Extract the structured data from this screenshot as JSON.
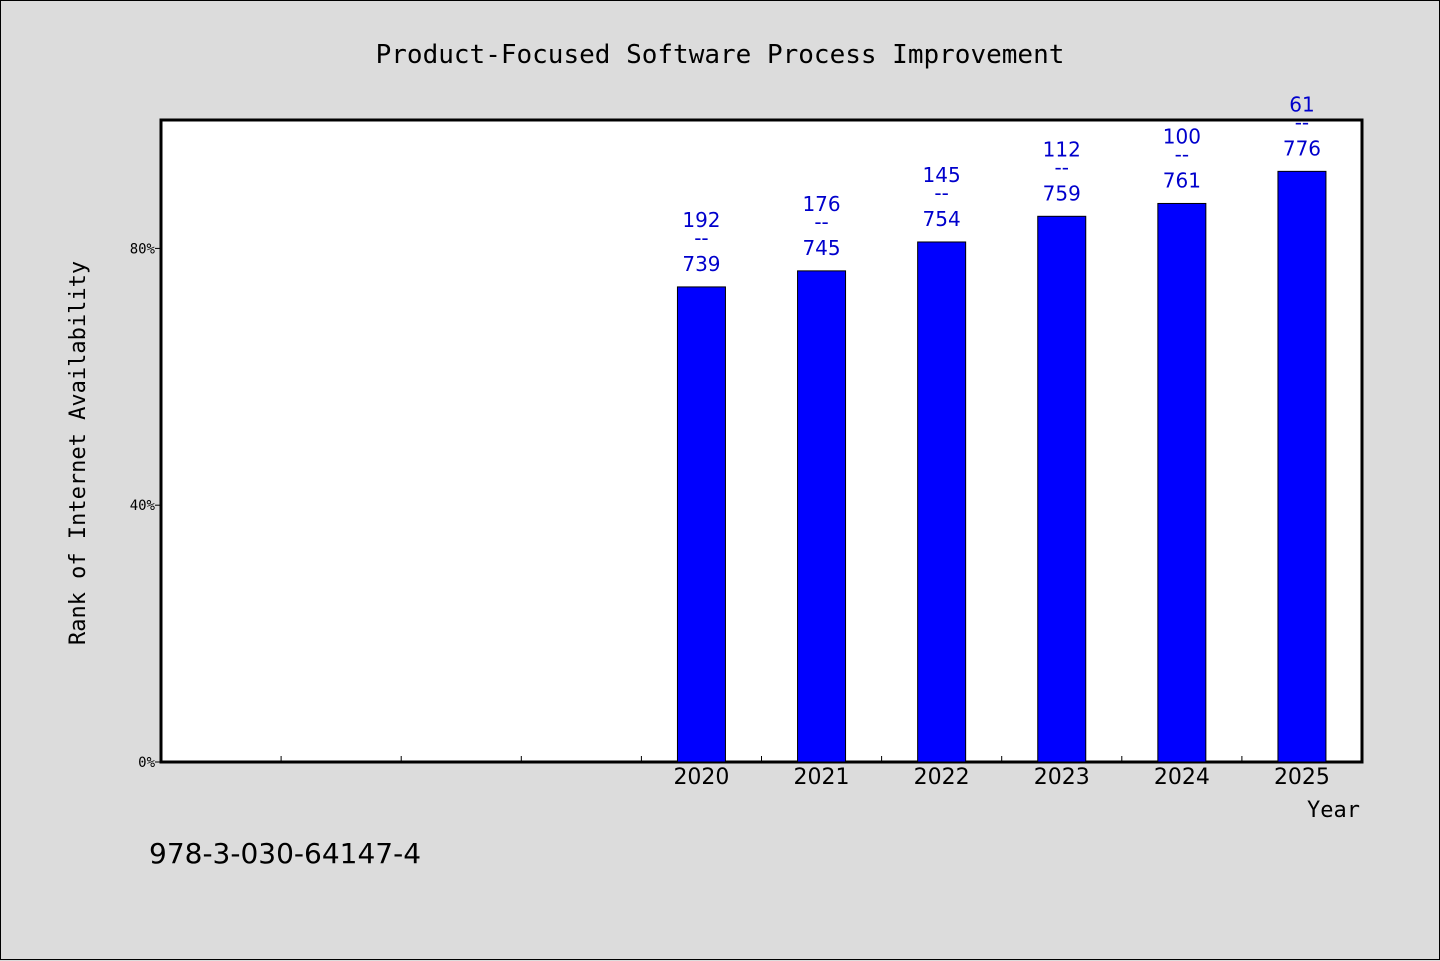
{
  "chart_data": {
    "type": "bar",
    "title": "Product-Focused Software Process Improvement",
    "xlabel": "Year",
    "ylabel": "Rank of Internet Availability",
    "categories": [
      "",
      "",
      "",
      "",
      "2020",
      "2021",
      "2022",
      "2023",
      "2024",
      "2025"
    ],
    "values": [
      null,
      null,
      null,
      null,
      74,
      76.5,
      81,
      85,
      87,
      92
    ],
    "bar_labels": [
      null,
      null,
      null,
      null,
      {
        "top": "192",
        "sep": "--",
        "bottom": "739"
      },
      {
        "top": "176",
        "sep": "--",
        "bottom": "745"
      },
      {
        "top": "145",
        "sep": "--",
        "bottom": "754"
      },
      {
        "top": "112",
        "sep": "--",
        "bottom": "759"
      },
      {
        "top": "100",
        "sep": "--",
        "bottom": "761"
      },
      {
        "top": "61",
        "sep": "--",
        "bottom": "776"
      }
    ],
    "ylim": [
      0,
      100
    ],
    "yticks": [
      {
        "value": 0,
        "label": "0%"
      },
      {
        "value": 40,
        "label": "40%"
      },
      {
        "value": 80,
        "label": "80%"
      }
    ],
    "grid": false,
    "legend": "none",
    "bar_color": "#0000ff",
    "label_color": "#0000cc"
  },
  "footer_note": "978-3-030-64147-4"
}
